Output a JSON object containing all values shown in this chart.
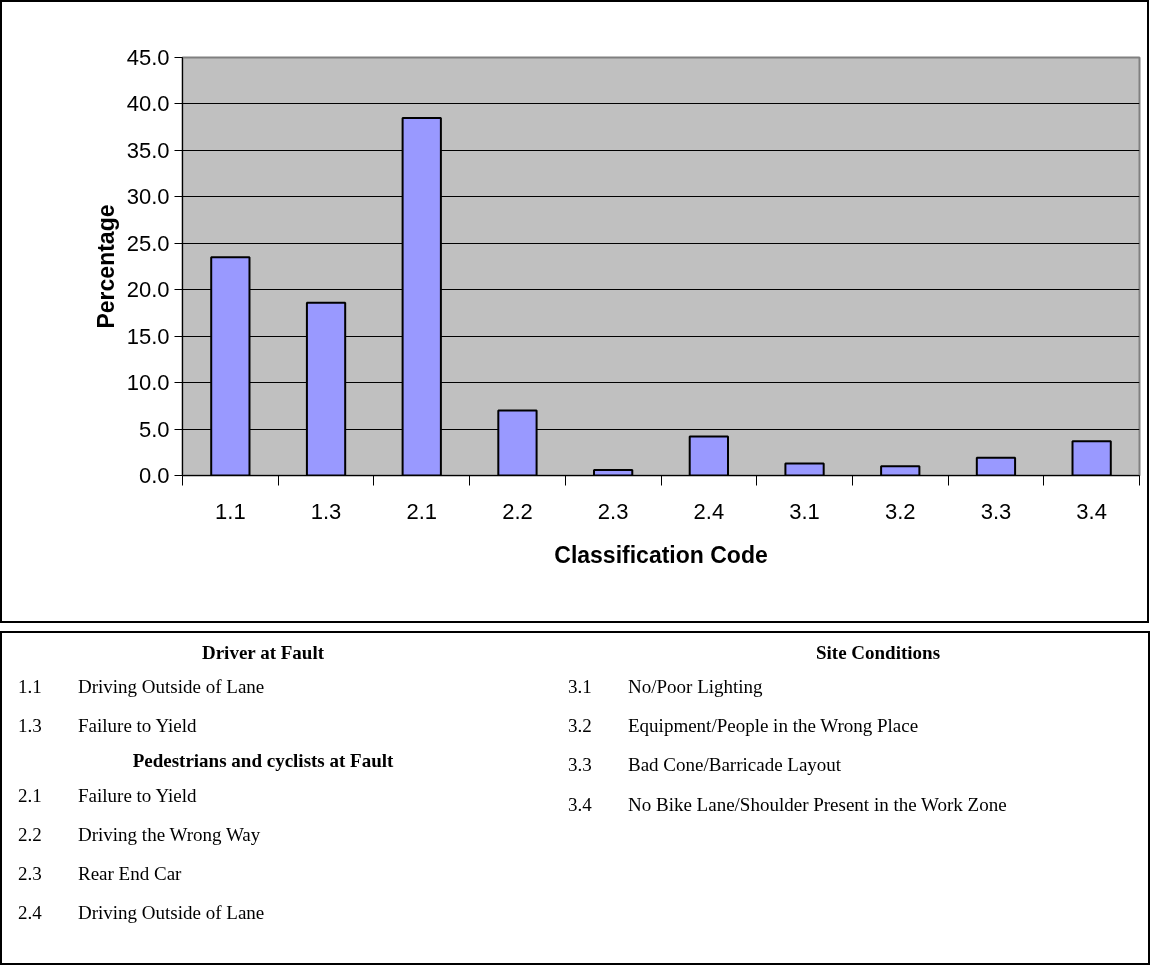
{
  "chart_data": {
    "type": "bar",
    "xlabel": "Classification Code",
    "ylabel": "Percentage",
    "categories": [
      "1.1",
      "1.3",
      "2.1",
      "2.2",
      "2.3",
      "2.4",
      "3.1",
      "3.2",
      "3.3",
      "3.4"
    ],
    "values": [
      23.5,
      18.6,
      38.5,
      7.0,
      0.6,
      4.2,
      1.3,
      1.0,
      1.9,
      3.7
    ],
    "color": "#9999ff",
    "ylim": [
      0,
      45
    ],
    "yticks": [
      {
        "value": 0,
        "label": "0.0"
      },
      {
        "value": 5,
        "label": "5.0"
      },
      {
        "value": 10,
        "label": "10.0"
      },
      {
        "value": 15,
        "label": "15.0"
      },
      {
        "value": 20,
        "label": "20.0"
      },
      {
        "value": 25,
        "label": "25.0"
      },
      {
        "value": 30,
        "label": "30.0"
      },
      {
        "value": 35,
        "label": "35.0"
      },
      {
        "value": 40,
        "label": "40.0"
      },
      {
        "value": 45,
        "label": "45.0"
      }
    ],
    "grid": "y",
    "annotations": [
      "Driver at Fault",
      "1.1 Driving Outside of Lane",
      "1.3 Failure to Yield",
      "Pedestrians and cyclists at Fault",
      "2.1 Failure to Yield",
      "2.2 Driving the Wrong Way",
      "2.3 Rear End Car",
      "2.4 Driving Outside of Lane",
      "Site Conditions",
      "3.1 No/Poor Lighting",
      "3.2 Equipment/People in the Wrong Place",
      "3.3 Bad Cone/Barricade Layout",
      "3.4 No Bike Lane/Shoulder Present in the Work Zone"
    ]
  }
}
